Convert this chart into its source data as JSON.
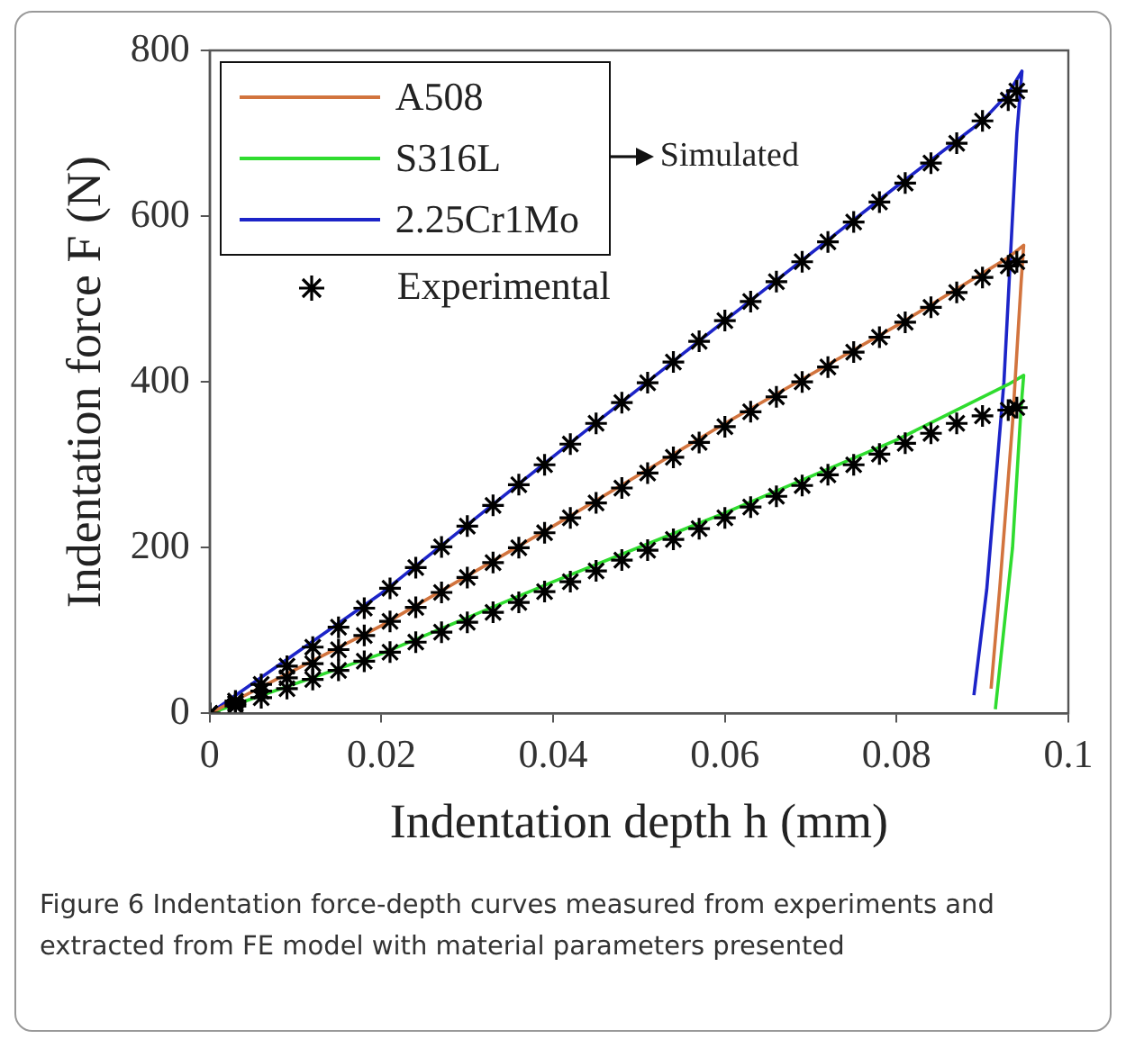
{
  "chart_data": {
    "type": "line",
    "xlabel": "Indentation depth h (mm)",
    "ylabel": "Indentation force F (N)",
    "xlim": [
      0,
      0.1
    ],
    "xticks": [
      0,
      0.02,
      0.04,
      0.06,
      0.08,
      0.1
    ],
    "ylim": [
      0,
      800
    ],
    "yticks": [
      0,
      200,
      400,
      600,
      800
    ],
    "legend": "top left",
    "annotations": [
      "Simulated",
      "Figure 6  Indentation force-depth curves measured from experiments and extracted from FE model with material parameters presented"
    ],
    "series": [
      {
        "name": "A508",
        "color": "#d2743e",
        "line_style": "solid",
        "marker": "none",
        "x": [
          0,
          0.02,
          0.04,
          0.06,
          0.08,
          0.093,
          0.0948,
          0.0945,
          0.0935,
          0.092,
          0.091
        ],
        "values": [
          0,
          106,
          226,
          350,
          468,
          550,
          565,
          520,
          350,
          150,
          30
        ]
      },
      {
        "name": "S316L",
        "color": "#2fdc2f",
        "line_style": "solid",
        "marker": "none",
        "x": [
          0,
          0.02,
          0.04,
          0.06,
          0.08,
          0.093,
          0.0948,
          0.0945,
          0.0935,
          0.0915
        ],
        "values": [
          0,
          72,
          159,
          242,
          330,
          397,
          408,
          370,
          200,
          5
        ]
      },
      {
        "name": "2.25Cr1Mo",
        "color": "#1c24c8",
        "line_style": "solid",
        "marker": "none",
        "x": [
          0,
          0.02,
          0.04,
          0.06,
          0.08,
          0.09,
          0.093,
          0.0946,
          0.094,
          0.0925,
          0.0905,
          0.089
        ],
        "values": [
          0,
          145,
          310,
          474,
          636,
          715,
          748,
          775,
          700,
          400,
          150,
          22
        ]
      },
      {
        "name": "Experimental",
        "type": "scatter",
        "color": "#000000",
        "marker": "cross",
        "x": [
          0,
          0.003,
          0.006,
          0.009,
          0.012,
          0.015,
          0.018,
          0.021,
          0.024,
          0.027,
          0.03,
          0.033,
          0.036,
          0.039,
          0.042,
          0.045,
          0.048,
          0.051,
          0.054,
          0.057,
          0.06,
          0.063,
          0.066,
          0.069,
          0.072,
          0.075,
          0.078,
          0.081,
          0.084,
          0.087,
          0.09,
          0.093,
          0.094,
          0,
          0.003,
          0.006,
          0.009,
          0.012,
          0.015,
          0.018,
          0.021,
          0.024,
          0.027,
          0.03,
          0.033,
          0.036,
          0.039,
          0.042,
          0.045,
          0.048,
          0.051,
          0.054,
          0.057,
          0.06,
          0.063,
          0.066,
          0.069,
          0.072,
          0.075,
          0.078,
          0.081,
          0.084,
          0.087,
          0.09,
          0.093,
          0.094,
          0,
          0.003,
          0.006,
          0.009,
          0.012,
          0.015,
          0.018,
          0.021,
          0.024,
          0.027,
          0.03,
          0.033,
          0.036,
          0.039,
          0.042,
          0.045,
          0.048,
          0.051,
          0.054,
          0.057,
          0.06,
          0.063,
          0.066,
          0.069,
          0.072,
          0.075,
          0.078,
          0.081,
          0.084,
          0.087,
          0.09,
          0.093,
          0.094
        ],
        "values": [
          0,
          15,
          35,
          57,
          80,
          104,
          127,
          151,
          176,
          201,
          226,
          251,
          276,
          300,
          325,
          350,
          375,
          399,
          424,
          449,
          474,
          497,
          521,
          545,
          569,
          593,
          617,
          640,
          664,
          688,
          715,
          740,
          751,
          0,
          12,
          27,
          43,
          60,
          77,
          94,
          111,
          128,
          146,
          164,
          182,
          200,
          218,
          236,
          254,
          272,
          290,
          309,
          327,
          346,
          364,
          382,
          400,
          418,
          436,
          454,
          472,
          490,
          508,
          526,
          540,
          545,
          0,
          9,
          19,
          30,
          41,
          52,
          63,
          74,
          86,
          98,
          110,
          122,
          134,
          147,
          159,
          172,
          185,
          197,
          210,
          223,
          236,
          249,
          262,
          275,
          288,
          300,
          313,
          326,
          338,
          350,
          359,
          366,
          369
        ]
      }
    ]
  }
}
